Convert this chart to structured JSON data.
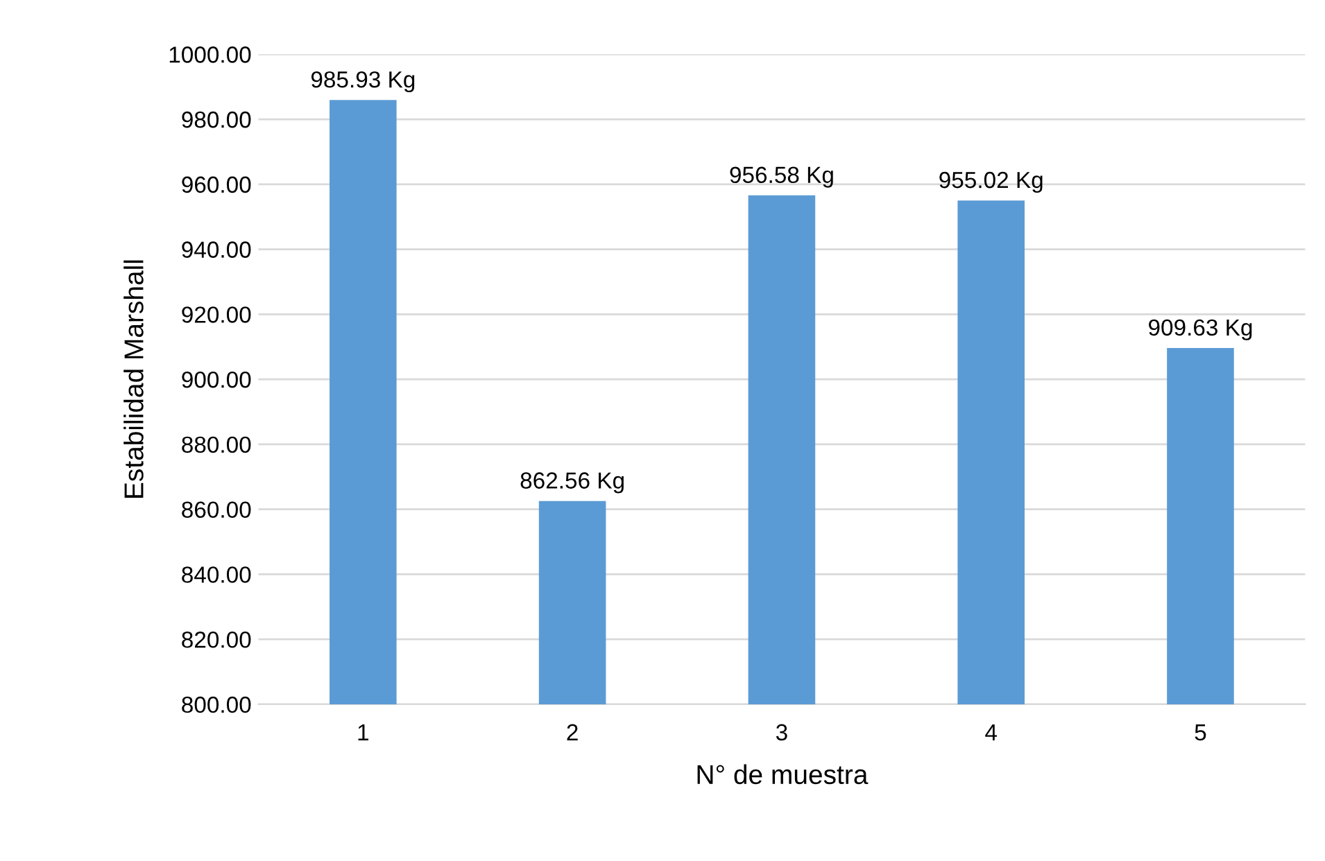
{
  "chart_data": {
    "type": "bar",
    "xlabel": "N° de muestra",
    "ylabel": "Estabilidad Marshall",
    "categories": [
      "1",
      "2",
      "3",
      "4",
      "5"
    ],
    "values": [
      985.93,
      862.56,
      956.58,
      955.02,
      909.63
    ],
    "value_labels": [
      "985.93 Kg",
      "862.56 Kg",
      "956.58 Kg",
      "955.02 Kg",
      "909.63 Kg"
    ],
    "color": "#5b9bd5",
    "ylim": [
      800,
      1000
    ],
    "yticks": [
      {
        "value": 800,
        "label": "800.00"
      },
      {
        "value": 820,
        "label": "820.00"
      },
      {
        "value": 840,
        "label": "840.00"
      },
      {
        "value": 860,
        "label": "860.00"
      },
      {
        "value": 880,
        "label": "880.00"
      },
      {
        "value": 900,
        "label": "900.00"
      },
      {
        "value": 920,
        "label": "920.00"
      },
      {
        "value": 940,
        "label": "940.00"
      },
      {
        "value": 960,
        "label": "960.00"
      },
      {
        "value": 980,
        "label": "980.00"
      },
      {
        "value": 1000,
        "label": "1000.00"
      }
    ],
    "grid": "y"
  }
}
